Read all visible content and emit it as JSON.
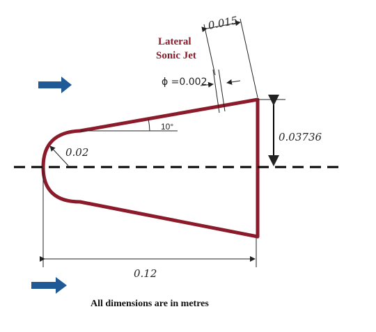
{
  "labels": {
    "jet_line1": "Lateral",
    "jet_line2": "Sonic Jet",
    "jet_offset": "0.015",
    "jet_diameter": "ϕ =0.002",
    "angle": "10°",
    "height": "0.03736",
    "nose_radius": "0.02",
    "length": "0.12"
  },
  "caption": "All dimensions are in metres"
}
